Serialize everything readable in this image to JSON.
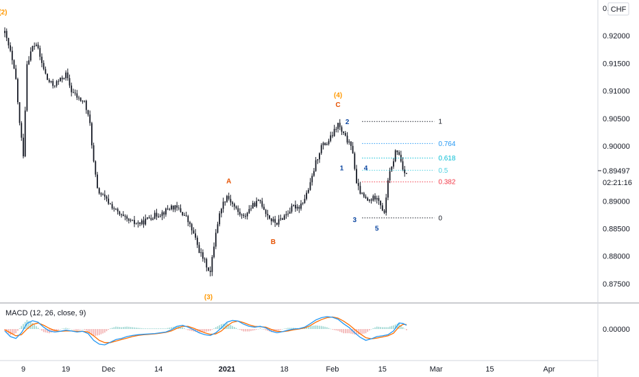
{
  "chart_data": {
    "type": "candlestick",
    "symbol_badge": "CHF",
    "price_label": "0.89497",
    "countdown_label": "02:21:16",
    "ylim": [
      0.8715,
      0.9265
    ],
    "y_ticks": [
      "0.92000",
      "0.91500",
      "0.91000",
      "0.90500",
      "0.90000",
      "0.89000",
      "0.88500",
      "0.88000",
      "0.87500"
    ],
    "top_partial_tick": "0.9",
    "x_ticks": [
      {
        "label": "9",
        "bar": 0,
        "bold": false
      },
      {
        "label": "19",
        "bar": 23,
        "bold": false
      },
      {
        "label": "Dec",
        "bar": 46,
        "bold": false
      },
      {
        "label": "14",
        "bar": 73,
        "bold": false
      },
      {
        "label": "2021",
        "bar": 110,
        "bold": true
      },
      {
        "label": "18",
        "bar": 141,
        "bold": false
      },
      {
        "label": "Feb",
        "bar": 167,
        "bold": false
      },
      {
        "label": "15",
        "bar": 194,
        "bold": false
      },
      {
        "label": "Mar",
        "bar": 223,
        "bold": false
      },
      {
        "label": "15",
        "bar": 252,
        "bold": false
      },
      {
        "label": "Apr",
        "bar": 284,
        "bold": false
      }
    ],
    "price_path": [
      [
        0,
        0.9205
      ],
      [
        3,
        0.917
      ],
      [
        6,
        0.912
      ],
      [
        8,
        0.904
      ],
      [
        10,
        0.8985
      ],
      [
        12,
        0.915
      ],
      [
        15,
        0.918
      ],
      [
        17,
        0.9185
      ],
      [
        20,
        0.915
      ],
      [
        23,
        0.912
      ],
      [
        26,
        0.911
      ],
      [
        30,
        0.912
      ],
      [
        33,
        0.913
      ],
      [
        36,
        0.91
      ],
      [
        40,
        0.9085
      ],
      [
        43,
        0.908
      ],
      [
        46,
        0.904
      ],
      [
        48,
        0.897
      ],
      [
        50,
        0.892
      ],
      [
        54,
        0.8905
      ],
      [
        58,
        0.889
      ],
      [
        62,
        0.8875
      ],
      [
        66,
        0.8865
      ],
      [
        70,
        0.886
      ],
      [
        74,
        0.886
      ],
      [
        78,
        0.887
      ],
      [
        82,
        0.8875
      ],
      [
        86,
        0.888
      ],
      [
        90,
        0.889
      ],
      [
        94,
        0.8885
      ],
      [
        98,
        0.887
      ],
      [
        102,
        0.884
      ],
      [
        105,
        0.881
      ],
      [
        108,
        0.879
      ],
      [
        111,
        0.877
      ],
      [
        114,
        0.8845
      ],
      [
        117,
        0.889
      ],
      [
        120,
        0.891
      ],
      [
        123,
        0.8895
      ],
      [
        126,
        0.888
      ],
      [
        129,
        0.887
      ],
      [
        132,
        0.8885
      ],
      [
        135,
        0.8895
      ],
      [
        138,
        0.89
      ],
      [
        141,
        0.888
      ],
      [
        144,
        0.8865
      ],
      [
        147,
        0.886
      ],
      [
        150,
        0.887
      ],
      [
        153,
        0.888
      ],
      [
        156,
        0.889
      ],
      [
        159,
        0.889
      ],
      [
        162,
        0.8905
      ],
      [
        165,
        0.893
      ],
      [
        168,
        0.897
      ],
      [
        171,
        0.9
      ],
      [
        174,
        0.9005
      ],
      [
        177,
        0.902
      ],
      [
        180,
        0.904
      ],
      [
        182,
        0.9025
      ],
      [
        185,
        0.901
      ],
      [
        188,
        0.899
      ],
      [
        190,
        0.893
      ],
      [
        193,
        0.891
      ],
      [
        196,
        0.89
      ],
      [
        199,
        0.8905
      ],
      [
        201,
        0.891
      ],
      [
        203,
        0.8895
      ],
      [
        205,
        0.8875
      ],
      [
        207,
        0.894
      ],
      [
        209,
        0.896
      ],
      [
        211,
        0.899
      ],
      [
        213,
        0.8985
      ],
      [
        215,
        0.896
      ],
      [
        217,
        0.895
      ]
    ],
    "wave_labels": [
      {
        "text": "(2)",
        "bar": -1,
        "price": 0.9239,
        "color": "#ff9800"
      },
      {
        "text": "(3)",
        "bar": 110,
        "price": 0.8722,
        "color": "#ff9800"
      },
      {
        "text": "(4)",
        "bar": 180,
        "price": 0.9088,
        "color": "#ff9800"
      },
      {
        "text": "A",
        "bar": 121,
        "price": 0.8932,
        "color": "#e65100"
      },
      {
        "text": "B",
        "bar": 145,
        "price": 0.8822,
        "color": "#e65100"
      },
      {
        "text": "C",
        "bar": 180,
        "price": 0.9071,
        "color": "#e65100"
      },
      {
        "text": "1",
        "bar": 182,
        "price": 0.8956,
        "color": "#0d47a1"
      },
      {
        "text": "2",
        "bar": 185,
        "price": 0.904,
        "color": "#0d47a1"
      },
      {
        "text": "3",
        "bar": 189,
        "price": 0.8862,
        "color": "#0d47a1"
      },
      {
        "text": "4",
        "bar": 195,
        "price": 0.8956,
        "color": "#0d47a1"
      },
      {
        "text": "5",
        "bar": 201,
        "price": 0.8846,
        "color": "#0d47a1"
      }
    ],
    "fib_levels": [
      {
        "label": "1",
        "price": 0.90445,
        "color": "#131722"
      },
      {
        "label": "0.764",
        "price": 0.90045,
        "color": "#2196f3"
      },
      {
        "label": "0.618",
        "price": 0.8978,
        "color": "#00bcd4"
      },
      {
        "label": "0.5",
        "price": 0.8956,
        "color": "#4dd0e1"
      },
      {
        "label": "0.382",
        "price": 0.8935,
        "color": "#f23645"
      },
      {
        "label": "0",
        "price": 0.88695,
        "color": "#131722"
      }
    ],
    "fib_bar_range": [
      193,
      232
    ],
    "macd": {
      "label": "MACD (12, 26, close, 9)",
      "y_tick": "0.00000",
      "line_color": "#2196f3",
      "signal_color": "#ff6d00",
      "macd_path": [
        [
          0,
          -0.0005
        ],
        [
          3,
          -0.002
        ],
        [
          6,
          -0.0025
        ],
        [
          9,
          -0.001
        ],
        [
          12,
          0.0015
        ],
        [
          15,
          0.0022
        ],
        [
          18,
          0.0018
        ],
        [
          21,
          0.0005
        ],
        [
          24,
          -0.0005
        ],
        [
          27,
          -0.0008
        ],
        [
          30,
          -0.0006
        ],
        [
          33,
          -0.0003
        ],
        [
          36,
          -0.0005
        ],
        [
          39,
          -0.0008
        ],
        [
          42,
          -0.0006
        ],
        [
          45,
          -0.0012
        ],
        [
          48,
          -0.003
        ],
        [
          51,
          -0.004
        ],
        [
          54,
          -0.0042
        ],
        [
          57,
          -0.0035
        ],
        [
          60,
          -0.0028
        ],
        [
          63,
          -0.0025
        ],
        [
          66,
          -0.002
        ],
        [
          69,
          -0.0017
        ],
        [
          72,
          -0.0015
        ],
        [
          75,
          -0.0014
        ],
        [
          78,
          -0.0013
        ],
        [
          81,
          -0.0012
        ],
        [
          84,
          -0.001
        ],
        [
          87,
          -0.0008
        ],
        [
          90,
          -0.0002
        ],
        [
          93,
          0.0007
        ],
        [
          96,
          0.001
        ],
        [
          99,
          0.0005
        ],
        [
          102,
          -0.0002
        ],
        [
          105,
          -0.001
        ],
        [
          108,
          -0.0015
        ],
        [
          111,
          -0.0017
        ],
        [
          114,
          -0.001
        ],
        [
          117,
          0.0003
        ],
        [
          120,
          0.0018
        ],
        [
          123,
          0.0023
        ],
        [
          126,
          0.0021
        ],
        [
          129,
          0.0013
        ],
        [
          132,
          0.0007
        ],
        [
          135,
          0.0005
        ],
        [
          138,
          0.0007
        ],
        [
          141,
          0.0003
        ],
        [
          144,
          -0.0006
        ],
        [
          147,
          -0.001
        ],
        [
          150,
          -0.0007
        ],
        [
          153,
          -0.0003
        ],
        [
          156,
          0.0
        ],
        [
          159,
          0.0001
        ],
        [
          162,
          0.0005
        ],
        [
          165,
          0.0014
        ],
        [
          168,
          0.0024
        ],
        [
          171,
          0.003
        ],
        [
          174,
          0.0033
        ],
        [
          177,
          0.0031
        ],
        [
          180,
          0.0026
        ],
        [
          183,
          0.0014
        ],
        [
          186,
          0.0004
        ],
        [
          189,
          -0.001
        ],
        [
          192,
          -0.0022
        ],
        [
          195,
          -0.003
        ],
        [
          198,
          -0.0026
        ],
        [
          201,
          -0.002
        ],
        [
          204,
          -0.0018
        ],
        [
          207,
          -0.0015
        ],
        [
          210,
          -0.0005
        ],
        [
          213,
          0.0016
        ],
        [
          215,
          0.0015
        ],
        [
          217,
          0.001
        ]
      ],
      "signal_path": [
        [
          0,
          -0.0002
        ],
        [
          3,
          -0.001
        ],
        [
          6,
          -0.0018
        ],
        [
          9,
          -0.0015
        ],
        [
          12,
          0.0
        ],
        [
          15,
          0.0012
        ],
        [
          18,
          0.0016
        ],
        [
          21,
          0.001
        ],
        [
          24,
          0.0002
        ],
        [
          27,
          -0.0004
        ],
        [
          30,
          -0.0006
        ],
        [
          33,
          -0.0005
        ],
        [
          36,
          -0.0005
        ],
        [
          39,
          -0.0006
        ],
        [
          42,
          -0.0006
        ],
        [
          45,
          -0.0008
        ],
        [
          48,
          -0.0018
        ],
        [
          51,
          -0.003
        ],
        [
          54,
          -0.0036
        ],
        [
          57,
          -0.0036
        ],
        [
          60,
          -0.0032
        ],
        [
          63,
          -0.0028
        ],
        [
          66,
          -0.0024
        ],
        [
          69,
          -0.002
        ],
        [
          72,
          -0.0017
        ],
        [
          75,
          -0.0015
        ],
        [
          78,
          -0.0014
        ],
        [
          81,
          -0.0013
        ],
        [
          84,
          -0.0011
        ],
        [
          87,
          -0.0009
        ],
        [
          90,
          -0.0005
        ],
        [
          93,
          0.0002
        ],
        [
          96,
          0.0007
        ],
        [
          99,
          0.0007
        ],
        [
          102,
          0.0002
        ],
        [
          105,
          -0.0004
        ],
        [
          108,
          -0.001
        ],
        [
          111,
          -0.0014
        ],
        [
          114,
          -0.0013
        ],
        [
          117,
          -0.0005
        ],
        [
          120,
          0.0008
        ],
        [
          123,
          0.0018
        ],
        [
          126,
          0.0021
        ],
        [
          129,
          0.0017
        ],
        [
          132,
          0.0011
        ],
        [
          135,
          0.0007
        ],
        [
          138,
          0.0006
        ],
        [
          141,
          0.0005
        ],
        [
          144,
          -0.0001
        ],
        [
          147,
          -0.0006
        ],
        [
          150,
          -0.0007
        ],
        [
          153,
          -0.0005
        ],
        [
          156,
          -0.0002
        ],
        [
          159,
          0.0
        ],
        [
          162,
          0.0003
        ],
        [
          165,
          0.0009
        ],
        [
          168,
          0.0018
        ],
        [
          171,
          0.0025
        ],
        [
          174,
          0.003
        ],
        [
          177,
          0.0032
        ],
        [
          180,
          0.0029
        ],
        [
          183,
          0.0021
        ],
        [
          186,
          0.0011
        ],
        [
          189,
          -0.0001
        ],
        [
          192,
          -0.0013
        ],
        [
          195,
          -0.0023
        ],
        [
          198,
          -0.0026
        ],
        [
          201,
          -0.0024
        ],
        [
          204,
          -0.0021
        ],
        [
          207,
          -0.0018
        ],
        [
          210,
          -0.0011
        ],
        [
          213,
          0.0006
        ],
        [
          215,
          0.0012
        ],
        [
          217,
          0.0012
        ]
      ]
    }
  }
}
